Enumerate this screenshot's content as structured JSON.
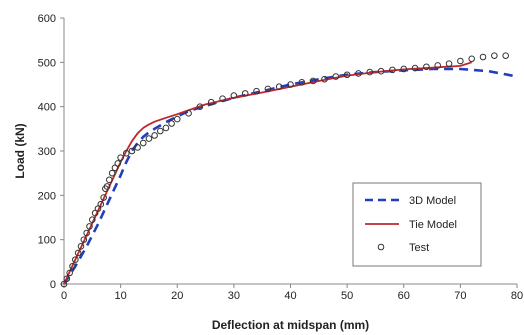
{
  "chart_data": {
    "type": "line",
    "xlabel": "Deflection at midspan (mm)",
    "ylabel": "Load (kN)",
    "xlim": [
      0,
      80
    ],
    "ylim": [
      0,
      600
    ],
    "xticks": [
      "0",
      "10",
      "20",
      "30",
      "40",
      "50",
      "60",
      "70",
      "80"
    ],
    "yticks": [
      "0",
      "100",
      "200",
      "300",
      "400",
      "500",
      "600"
    ],
    "grid": false,
    "legend_position": "bottom-right",
    "series": [
      {
        "name": "3D Model",
        "style": "dashed",
        "color": "#1f3fbf",
        "x": [
          0,
          2,
          4,
          6,
          8,
          10,
          11,
          12,
          13,
          14,
          15,
          16,
          18,
          20,
          22,
          25,
          30,
          35,
          40,
          45,
          50,
          55,
          60,
          65,
          70,
          75,
          80
        ],
        "y": [
          0,
          40,
          85,
          135,
          190,
          245,
          275,
          300,
          318,
          332,
          342,
          350,
          365,
          378,
          390,
          402,
          420,
          435,
          450,
          462,
          472,
          478,
          482,
          485,
          485,
          480,
          468
        ]
      },
      {
        "name": "Tie Model",
        "style": "solid",
        "color": "#c0262d",
        "x": [
          0,
          2,
          4,
          6,
          8,
          10,
          11,
          12,
          13,
          14,
          15,
          16,
          18,
          20,
          22,
          25,
          30,
          35,
          40,
          45,
          50,
          55,
          60,
          65,
          70,
          72
        ],
        "y": [
          0,
          55,
          110,
          165,
          220,
          275,
          300,
          322,
          340,
          352,
          360,
          366,
          375,
          383,
          392,
          405,
          420,
          432,
          445,
          458,
          470,
          478,
          484,
          488,
          492,
          500
        ]
      },
      {
        "name": "Test",
        "style": "marker",
        "color": "#333333",
        "x": [
          0,
          0.5,
          1,
          1.5,
          2,
          2.5,
          3,
          3.5,
          4,
          4.5,
          5,
          5.5,
          6,
          6.5,
          7,
          7.3,
          7.6,
          8,
          8.5,
          9,
          9.5,
          10,
          11,
          12,
          13,
          14,
          15,
          16,
          17,
          18,
          19,
          20,
          22,
          24,
          26,
          28,
          30,
          32,
          34,
          36,
          38,
          40,
          42,
          44,
          46,
          48,
          50,
          52,
          54,
          56,
          58,
          60,
          62,
          64,
          66,
          68,
          70,
          72,
          74,
          76,
          78
        ],
        "y": [
          0,
          12,
          25,
          40,
          55,
          70,
          85,
          100,
          115,
          130,
          145,
          160,
          170,
          180,
          195,
          215,
          220,
          235,
          250,
          262,
          272,
          285,
          295,
          300,
          308,
          318,
          328,
          335,
          345,
          352,
          362,
          372,
          385,
          400,
          410,
          418,
          425,
          430,
          435,
          440,
          445,
          450,
          455,
          458,
          462,
          468,
          472,
          475,
          478,
          480,
          483,
          485,
          487,
          490,
          493,
          497,
          503,
          508,
          512,
          515,
          515
        ]
      }
    ]
  }
}
